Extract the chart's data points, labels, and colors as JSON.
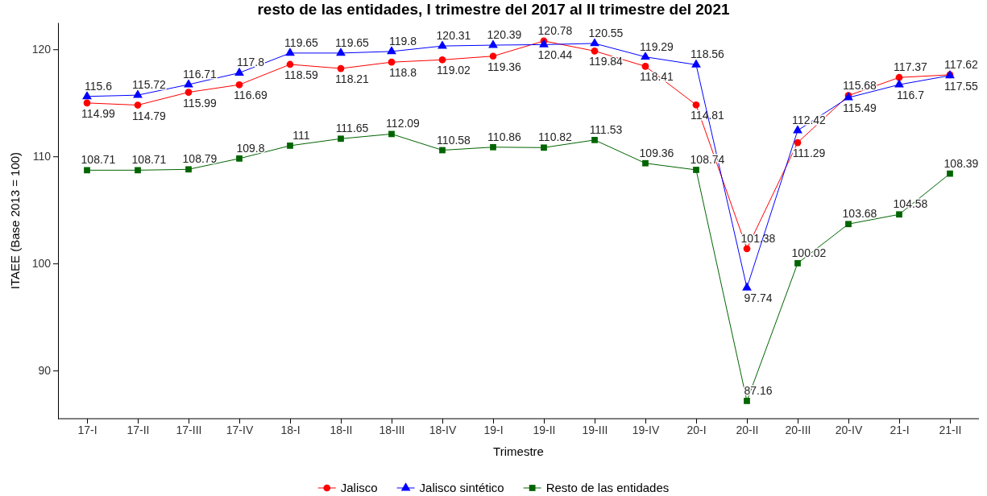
{
  "chart_data": {
    "type": "line",
    "title": "resto de las entidades, I trimestre del 2017 al II trimestre del 2021",
    "xlabel": "Trimestre",
    "ylabel": "ITAEE (Base 2013 = 100)",
    "categories": [
      "17-I",
      "17-II",
      "17-III",
      "17-IV",
      "18-I",
      "18-II",
      "18-III",
      "18-IV",
      "19-I",
      "19-II",
      "19-III",
      "19-IV",
      "20-I",
      "20-II",
      "20-III",
      "20-IV",
      "21-I",
      "21-II"
    ],
    "series": [
      {
        "name": "Jalisco",
        "color": "#ff0000",
        "marker": "circle",
        "values": [
          114.99,
          114.79,
          115.99,
          116.69,
          118.59,
          118.21,
          118.8,
          119.02,
          119.36,
          120.78,
          119.84,
          118.41,
          114.81,
          101.38,
          111.29,
          115.68,
          117.37,
          117.62
        ]
      },
      {
        "name": "Jalisco sintético",
        "color": "#0000ff",
        "marker": "triangle",
        "values": [
          115.6,
          115.72,
          116.71,
          117.8,
          119.65,
          119.65,
          119.8,
          120.31,
          120.39,
          120.44,
          120.55,
          119.29,
          118.56,
          97.74,
          112.42,
          115.49,
          116.7,
          117.55
        ]
      },
      {
        "name": "Resto de las entidades",
        "color": "#006400",
        "marker": "square",
        "values": [
          108.71,
          108.71,
          108.79,
          109.8,
          111,
          111.65,
          112.09,
          110.58,
          110.86,
          110.82,
          111.53,
          109.36,
          108.74,
          87.16,
          100.02,
          103.68,
          104.58,
          108.39
        ]
      }
    ],
    "ylim": [
      85.5,
      122.5
    ],
    "yticks": [
      90,
      100,
      110,
      120
    ],
    "grid": false,
    "legend": "bottom",
    "data_labels": true
  }
}
